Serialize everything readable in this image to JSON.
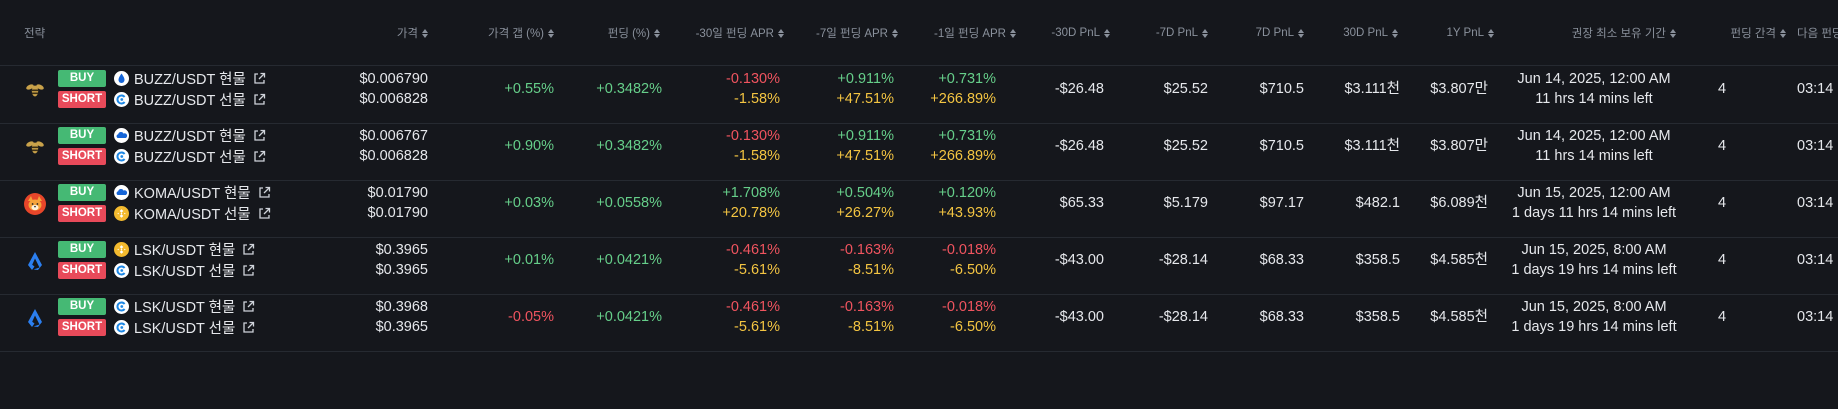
{
  "header": {
    "strategy": "전략",
    "price": "가격",
    "price_gap": "가격 갭 (%)",
    "funding": "펀딩 (%)",
    "apr_30": "-30일 펀딩 APR",
    "apr_7": "-7일 펀딩 APR",
    "apr_1": "-1일 펀딩 APR",
    "pnl_m30": "-30D PnL",
    "pnl_m7": "-7D PnL",
    "pnl_7": "7D PnL",
    "pnl_30": "30D PnL",
    "pnl_1y": "1Y PnL",
    "min_hold": "권장 최소 보유 기간",
    "interval": "펀딩 간격",
    "next": "다음 펀딩"
  },
  "rows": [
    {
      "coin_icon": "bee-icon",
      "buy_label": "BUY",
      "short_label": "SHORT",
      "buy_exchange_icon": "flame-drop-icon",
      "short_exchange_icon": "circle-c-icon",
      "buy_pair": "BUZZ/USDT 현물",
      "short_pair": "BUZZ/USDT 선물",
      "price_top": "$0.006790",
      "price_bottom": "$0.006828",
      "gap": "+0.55%",
      "funding": "+0.3482%",
      "apr30_top": "-0.130%",
      "apr30_bottom": "-1.58%",
      "apr7_top": "+0.911%",
      "apr7_bottom": "+47.51%",
      "apr1_top": "+0.731%",
      "apr1_bottom": "+266.89%",
      "pnl_m30": "-$26.48",
      "pnl_m7": "$25.52",
      "pnl_7": "$710.5",
      "pnl_30": "$3.111천",
      "pnl_1y": "$3.807만",
      "hold_date": "Jun 14, 2025, 12:00 AM",
      "hold_left": "11 hrs 14 mins left",
      "interval": "4",
      "next": "03:14"
    },
    {
      "coin_icon": "bee-icon",
      "buy_label": "BUY",
      "short_label": "SHORT",
      "buy_exchange_icon": "cloud-icon",
      "short_exchange_icon": "circle-c-icon",
      "buy_pair": "BUZZ/USDT 현물",
      "short_pair": "BUZZ/USDT 선물",
      "price_top": "$0.006767",
      "price_bottom": "$0.006828",
      "gap": "+0.90%",
      "funding": "+0.3482%",
      "apr30_top": "-0.130%",
      "apr30_bottom": "-1.58%",
      "apr7_top": "+0.911%",
      "apr7_bottom": "+47.51%",
      "apr1_top": "+0.731%",
      "apr1_bottom": "+266.89%",
      "pnl_m30": "-$26.48",
      "pnl_m7": "$25.52",
      "pnl_7": "$710.5",
      "pnl_30": "$3.111천",
      "pnl_1y": "$3.807만",
      "hold_date": "Jun 14, 2025, 12:00 AM",
      "hold_left": "11 hrs 14 mins left",
      "interval": "4",
      "next": "03:14"
    },
    {
      "coin_icon": "shiba-icon",
      "buy_label": "BUY",
      "short_label": "SHORT",
      "buy_exchange_icon": "cloud-icon",
      "short_exchange_icon": "binance-icon",
      "buy_pair": "KOMA/USDT 현물",
      "short_pair": "KOMA/USDT 선물",
      "price_top": "$0.01790",
      "price_bottom": "$0.01790",
      "gap": "+0.03%",
      "funding": "+0.0558%",
      "apr30_top": "+1.708%",
      "apr30_bottom": "+20.78%",
      "apr7_top": "+0.504%",
      "apr7_bottom": "+26.27%",
      "apr1_top": "+0.120%",
      "apr1_bottom": "+43.93%",
      "pnl_m30": "$65.33",
      "pnl_m7": "$5.179",
      "pnl_7": "$97.17",
      "pnl_30": "$482.1",
      "pnl_1y": "$6.089천",
      "hold_date": "Jun 15, 2025, 12:00 AM",
      "hold_left": "1 days 11 hrs 14 mins left",
      "interval": "4",
      "next": "03:14"
    },
    {
      "coin_icon": "lisk-icon",
      "buy_label": "BUY",
      "short_label": "SHORT",
      "buy_exchange_icon": "binance-icon",
      "short_exchange_icon": "circle-c-icon",
      "buy_pair": "LSK/USDT 현물",
      "short_pair": "LSK/USDT 선물",
      "price_top": "$0.3965",
      "price_bottom": "$0.3965",
      "gap": "+0.01%",
      "funding": "+0.0421%",
      "apr30_top": "-0.461%",
      "apr30_bottom": "-5.61%",
      "apr7_top": "-0.163%",
      "apr7_bottom": "-8.51%",
      "apr1_top": "-0.018%",
      "apr1_bottom": "-6.50%",
      "pnl_m30": "-$43.00",
      "pnl_m7": "-$28.14",
      "pnl_7": "$68.33",
      "pnl_30": "$358.5",
      "pnl_1y": "$4.585천",
      "hold_date": "Jun 15, 2025, 8:00 AM",
      "hold_left": "1 days 19 hrs 14 mins left",
      "interval": "4",
      "next": "03:14"
    },
    {
      "coin_icon": "lisk-icon",
      "buy_label": "BUY",
      "short_label": "SHORT",
      "buy_exchange_icon": "circle-c-icon",
      "short_exchange_icon": "circle-c-icon",
      "buy_pair": "LSK/USDT 현물",
      "short_pair": "LSK/USDT 선물",
      "price_top": "$0.3968",
      "price_bottom": "$0.3965",
      "gap": "-0.05%",
      "funding": "+0.0421%",
      "apr30_top": "-0.461%",
      "apr30_bottom": "-5.61%",
      "apr7_top": "-0.163%",
      "apr7_bottom": "-8.51%",
      "apr1_top": "-0.018%",
      "apr1_bottom": "-6.50%",
      "pnl_m30": "-$43.00",
      "pnl_m7": "-$28.14",
      "pnl_7": "$68.33",
      "pnl_30": "$358.5",
      "pnl_1y": "$4.585천",
      "hold_date": "Jun 15, 2025, 8:00 AM",
      "hold_left": "1 days 19 hrs 14 mins left",
      "interval": "4",
      "next": "03:14"
    }
  ],
  "colors": {
    "background": "#15171c",
    "positive": "#66cf8a",
    "negative": "#f0545f",
    "apr_annualized": "#f4c542",
    "buy_badge": "#45b974",
    "short_badge": "#e84a5a"
  }
}
